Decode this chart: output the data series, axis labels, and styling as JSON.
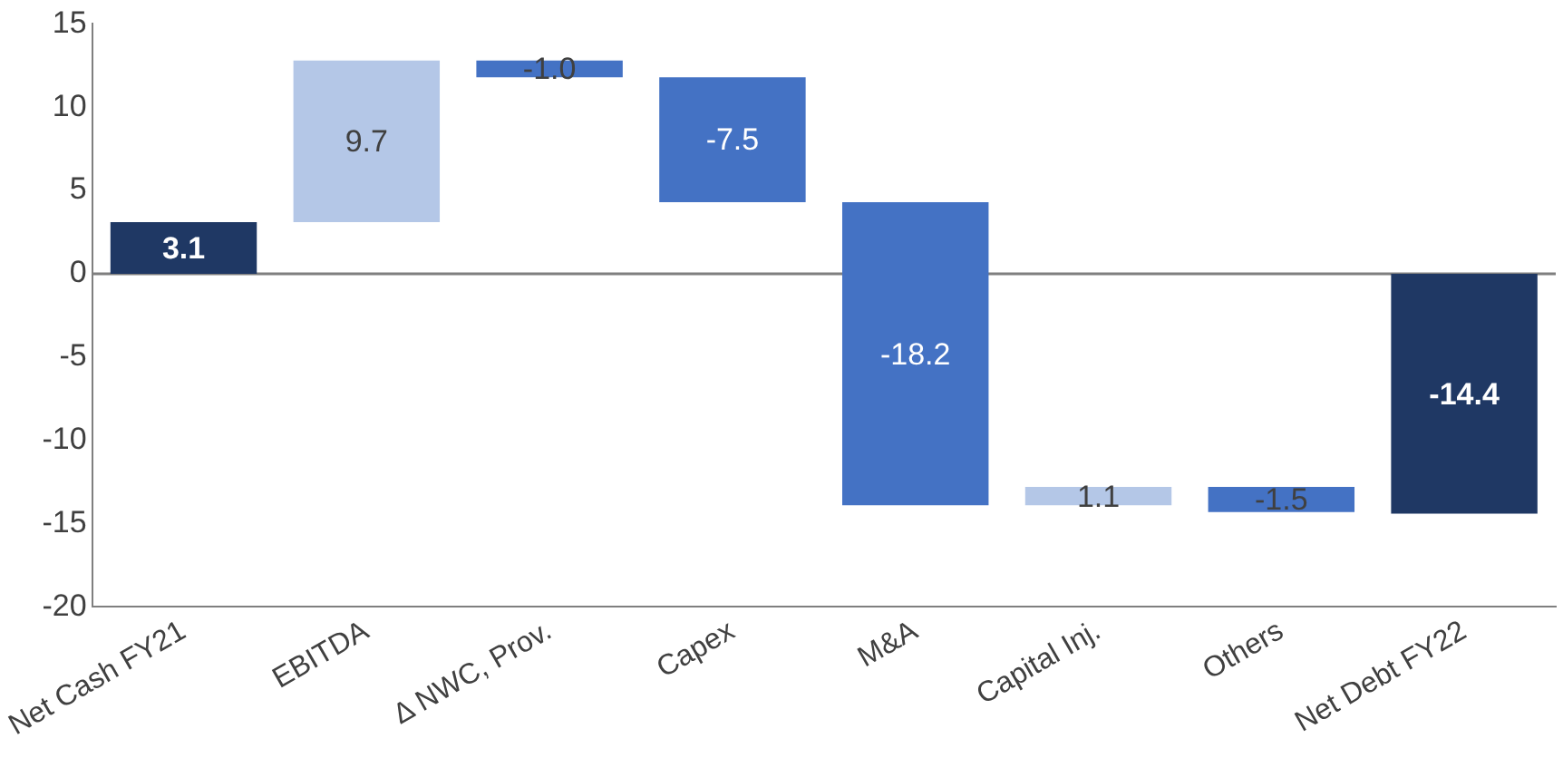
{
  "chart_data": {
    "type": "bar",
    "categories": [
      "Net Cash FY21",
      "EBITDA",
      "Δ NWC, Prov.",
      "Capex",
      "M&A",
      "Capital Inj.",
      "Others",
      "Net Debt FY22"
    ],
    "values": [
      3.1,
      9.7,
      -1.0,
      -7.5,
      -18.2,
      1.1,
      -1.5,
      -14.4
    ],
    "base": [
      0,
      3.1,
      12.8,
      11.8,
      4.3,
      -13.9,
      -12.8,
      0
    ],
    "colors": [
      "#1f3864",
      "#b4c7e7",
      "#4472c4",
      "#4472c4",
      "#4472c4",
      "#b4c7e7",
      "#4472c4",
      "#1f3864"
    ],
    "ylim": [
      -20,
      15
    ],
    "yticks": [
      -20,
      -15,
      -10,
      -5,
      0,
      5,
      10,
      15
    ],
    "value_labels": [
      "3.1",
      "9.7",
      "-1.0",
      "-7.5",
      "-18.2",
      "1.1",
      "-1.5",
      "-14.4"
    ],
    "grid": false,
    "legend": false,
    "ref_lines": [
      {
        "axis": "y",
        "value": 0,
        "color": "#7f7f7f"
      }
    ]
  }
}
